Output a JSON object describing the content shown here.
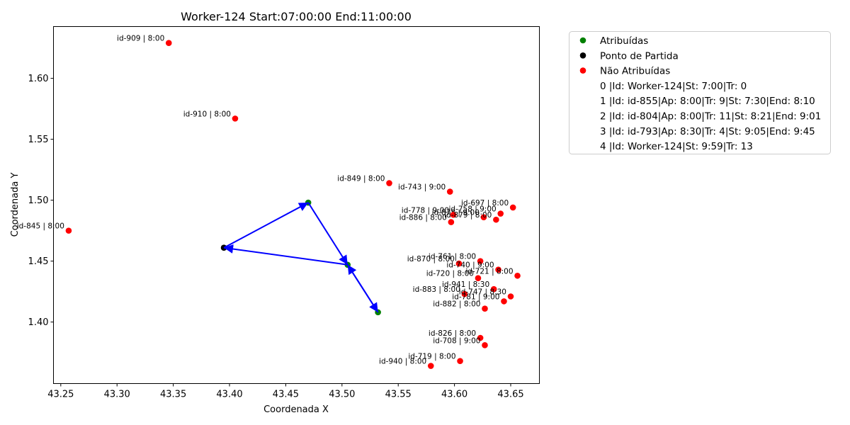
{
  "chart_data": {
    "type": "scatter",
    "title": "Worker-124 Start:07:00:00 End:11:00:00",
    "xlabel": "Coordenada X",
    "ylabel": "Coordenada Y",
    "xlim": [
      43.2435,
      43.6755
    ],
    "ylim": [
      1.3495,
      1.6425
    ],
    "xticks": [
      "43.25",
      "43.30",
      "43.35",
      "43.40",
      "43.45",
      "43.50",
      "43.55",
      "43.60",
      "43.65"
    ],
    "yticks": [
      "1.40",
      "1.45",
      "1.50",
      "1.55",
      "1.60"
    ],
    "grid": false,
    "legend_position": "outside-top-right",
    "colors": {
      "assigned": "#008000",
      "start": "#000000",
      "unassigned": "#ff0000",
      "route": "#0000ff"
    },
    "legend": [
      {
        "marker": "green",
        "text": "Atribuídas"
      },
      {
        "marker": "black",
        "text": "Ponto de Partida"
      },
      {
        "marker": "red",
        "text": "Não Atribuídas"
      },
      {
        "marker": "none",
        "text": "0 |Id: Worker-124|St: 7:00|Tr: 0"
      },
      {
        "marker": "none",
        "text": "1 |Id: id-855|Ap: 8:00|Tr: 9|St: 7:30|End: 8:10"
      },
      {
        "marker": "none",
        "text": "2 |Id: id-804|Ap: 8:00|Tr: 11|St: 8:21|End: 9:01"
      },
      {
        "marker": "none",
        "text": "3 |Id: id-793|Ap: 8:30|Tr: 4|St: 9:05|End: 9:45"
      },
      {
        "marker": "none",
        "text": "4 |Id: Worker-124|St: 9:59|Tr: 13"
      }
    ],
    "start_point": {
      "x": 43.395,
      "y": 1.461
    },
    "assigned": [
      {
        "x": 43.47,
        "y": 1.498
      },
      {
        "x": 43.505,
        "y": 1.447
      },
      {
        "x": 43.532,
        "y": 1.408
      }
    ],
    "route": [
      {
        "x": 43.505,
        "y": 1.447
      },
      {
        "x": 43.532,
        "y": 1.408
      },
      {
        "x": 43.505,
        "y": 1.447
      },
      {
        "x": 43.395,
        "y": 1.461
      },
      {
        "x": 43.47,
        "y": 1.498
      },
      {
        "x": 43.505,
        "y": 1.447
      }
    ],
    "unassigned": [
      {
        "x": 43.346,
        "y": 1.629,
        "label": "id-909 | 8:00"
      },
      {
        "x": 43.405,
        "y": 1.567,
        "label": "id-910 | 8:00"
      },
      {
        "x": 43.257,
        "y": 1.475,
        "label": "id-845 | 8:00"
      },
      {
        "x": 43.542,
        "y": 1.514,
        "label": "id-849 | 8:00"
      },
      {
        "x": 43.596,
        "y": 1.507,
        "label": "id-743 | 9:00"
      },
      {
        "x": 43.652,
        "y": 1.494,
        "label": "id-697 | 8:00"
      },
      {
        "x": 43.641,
        "y": 1.489,
        "label": "id-758 | 9:00"
      },
      {
        "x": 43.626,
        "y": 1.486,
        "label": "id-878 | 9:00"
      },
      {
        "x": 43.599,
        "y": 1.488,
        "label": "id-778 | 9:00"
      },
      {
        "x": 43.637,
        "y": 1.484,
        "label": "id-879 | 8:00"
      },
      {
        "x": 43.597,
        "y": 1.482,
        "label": "id-886 | 8:00"
      },
      {
        "x": 43.623,
        "y": 1.45,
        "label": "id-761 | 8:00"
      },
      {
        "x": 43.604,
        "y": 1.448,
        "label": "id-870 | 8:00"
      },
      {
        "x": 43.639,
        "y": 1.443,
        "label": "id-740 | 9:00"
      },
      {
        "x": 43.656,
        "y": 1.438,
        "label": "id-721 | 8:00"
      },
      {
        "x": 43.621,
        "y": 1.436,
        "label": "id-720 | 8:00"
      },
      {
        "x": 43.635,
        "y": 1.427,
        "label": "id-941 | 8:30"
      },
      {
        "x": 43.609,
        "y": 1.423,
        "label": "id-883 | 8:00"
      },
      {
        "x": 43.65,
        "y": 1.421,
        "label": "id-747 | 8:30"
      },
      {
        "x": 43.644,
        "y": 1.417,
        "label": "id-781 | 9:00"
      },
      {
        "x": 43.627,
        "y": 1.411,
        "label": "id-882 | 8:00"
      },
      {
        "x": 43.623,
        "y": 1.387,
        "label": "id-826 | 8:00"
      },
      {
        "x": 43.627,
        "y": 1.381,
        "label": "id-708 | 9:00"
      },
      {
        "x": 43.605,
        "y": 1.368,
        "label": "id-719 | 8:00"
      },
      {
        "x": 43.579,
        "y": 1.364,
        "label": "id-940 | 8:00"
      }
    ]
  }
}
